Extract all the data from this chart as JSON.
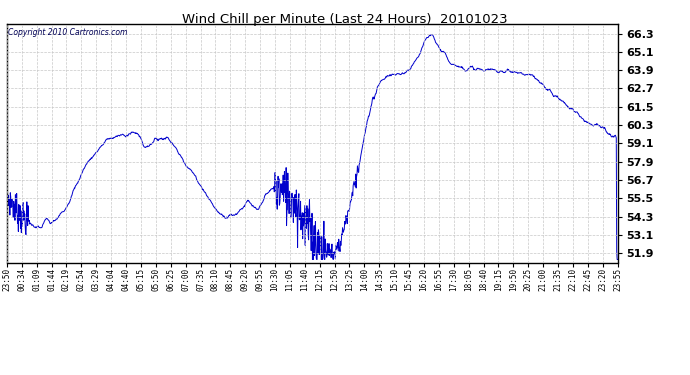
{
  "title": "Wind Chill per Minute (Last 24 Hours)  20101023",
  "copyright": "Copyright 2010 Cartronics.com",
  "line_color": "#0000cc",
  "bg_color": "#ffffff",
  "grid_color": "#c8c8c8",
  "yticks": [
    51.9,
    53.1,
    54.3,
    55.5,
    56.7,
    57.9,
    59.1,
    60.3,
    61.5,
    62.7,
    63.9,
    65.1,
    66.3
  ],
  "ymin": 51.3,
  "ymax": 66.9,
  "xtick_labels": [
    "23:50",
    "00:34",
    "01:09",
    "01:44",
    "02:19",
    "02:54",
    "03:29",
    "04:04",
    "04:40",
    "05:15",
    "05:50",
    "06:25",
    "07:00",
    "07:35",
    "08:10",
    "08:45",
    "09:20",
    "09:55",
    "10:30",
    "11:05",
    "11:40",
    "12:15",
    "12:50",
    "13:25",
    "14:00",
    "14:35",
    "15:10",
    "15:45",
    "16:20",
    "16:55",
    "17:30",
    "18:05",
    "18:40",
    "19:15",
    "19:50",
    "20:25",
    "21:00",
    "21:35",
    "22:10",
    "22:45",
    "23:20",
    "23:55"
  ],
  "num_points": 1440,
  "keypoints_x": [
    0.0,
    0.006,
    0.02,
    0.04,
    0.055,
    0.065,
    0.072,
    0.085,
    0.1,
    0.13,
    0.165,
    0.195,
    0.215,
    0.225,
    0.245,
    0.265,
    0.28,
    0.3,
    0.315,
    0.33,
    0.345,
    0.36,
    0.375,
    0.395,
    0.41,
    0.42,
    0.435,
    0.455,
    0.47,
    0.485,
    0.495,
    0.505,
    0.515,
    0.525,
    0.535,
    0.545,
    0.56,
    0.575,
    0.59,
    0.605,
    0.62,
    0.635,
    0.655,
    0.67,
    0.685,
    0.695,
    0.71,
    0.725,
    0.74,
    0.76,
    0.78,
    0.8,
    0.83,
    0.86,
    0.89,
    0.92,
    0.95,
    0.97,
    0.99,
    1.0
  ],
  "keypoints_y": [
    55.6,
    55.3,
    54.5,
    53.8,
    53.5,
    54.2,
    53.8,
    54.3,
    55.2,
    57.8,
    59.4,
    59.7,
    59.8,
    58.8,
    59.4,
    59.5,
    58.5,
    57.4,
    56.5,
    55.5,
    54.6,
    54.3,
    54.5,
    55.3,
    54.6,
    55.5,
    56.2,
    55.8,
    55.5,
    54.2,
    53.5,
    52.8,
    52.2,
    52.0,
    51.9,
    52.5,
    54.8,
    57.5,
    60.5,
    62.8,
    63.5,
    63.6,
    63.7,
    64.5,
    65.8,
    66.3,
    65.2,
    64.5,
    64.1,
    64.0,
    63.9,
    63.9,
    63.8,
    63.5,
    62.5,
    61.5,
    60.5,
    60.3,
    59.5,
    59.5
  ],
  "noise_seeds": {
    "base_std": 0.18,
    "early_region": [
      0,
      55
    ],
    "early_mult": 3.0,
    "spike_region": [
      630,
      750
    ],
    "spike_mult": 5.0,
    "mid_region": [
      750,
      830
    ],
    "mid_mult": 2.0,
    "late_region": [
      850,
      870
    ],
    "late_mult": 2.5
  }
}
